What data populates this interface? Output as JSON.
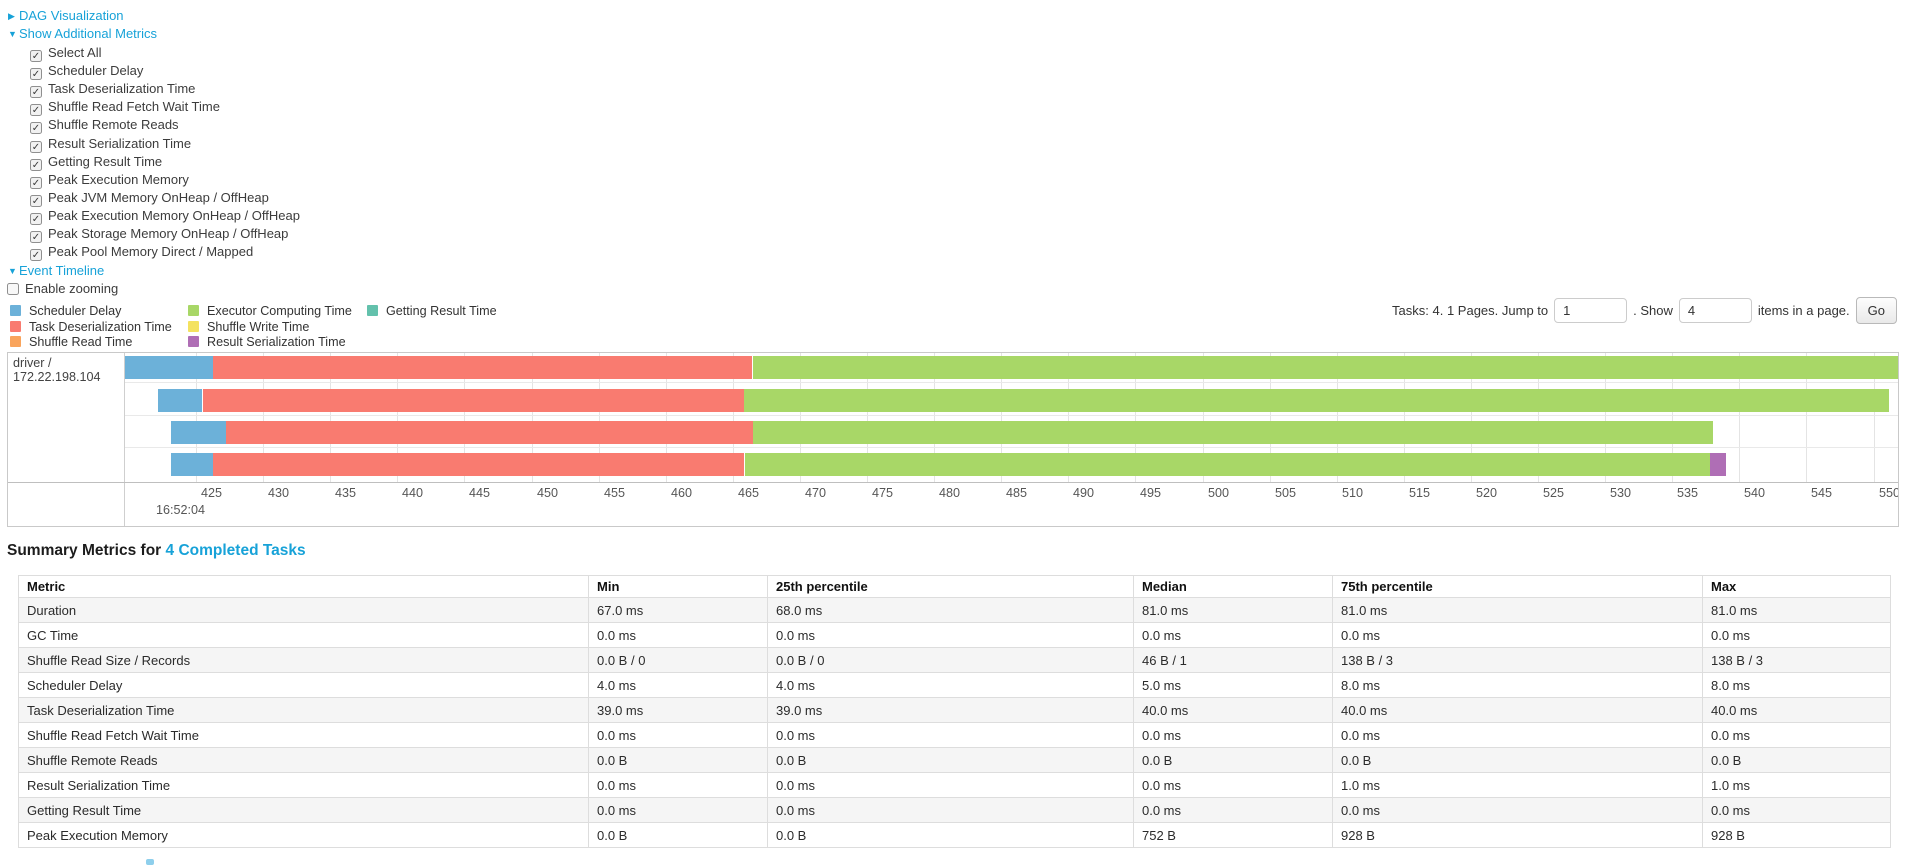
{
  "controls": {
    "dag": {
      "label": "DAG Visualization",
      "state": "collapsed"
    },
    "metrics_toggle": {
      "label": "Show Additional Metrics",
      "state": "expanded"
    },
    "metric_checkboxes": [
      "Select All",
      "Scheduler Delay",
      "Task Deserialization Time",
      "Shuffle Read Fetch Wait Time",
      "Shuffle Remote Reads",
      "Result Serialization Time",
      "Getting Result Time",
      "Peak Execution Memory",
      "Peak JVM Memory OnHeap / OffHeap",
      "Peak Execution Memory OnHeap / OffHeap",
      "Peak Storage Memory OnHeap / OffHeap",
      "Peak Pool Memory Direct / Mapped"
    ],
    "event_timeline": {
      "label": "Event Timeline",
      "state": "expanded"
    },
    "enable_zooming": {
      "label": "Enable zooming",
      "checked": false
    }
  },
  "pagination": {
    "prefix": "Tasks: 4. 1 Pages. Jump to",
    "jump_value": "1",
    "middle": ". Show",
    "show_value": "4",
    "suffix": "items in a page.",
    "go_label": "Go"
  },
  "colors": {
    "scheduler-delay": "#6CB1D9",
    "task-deserialization-time": "#F97B70",
    "shuffle-read-time": "#F9A45C",
    "executor-computing-time": "#A8D767",
    "shuffle-write-time": "#F4E25F",
    "result-serialization-time": "#AF6EB5",
    "getting-result-time": "#63C1AC"
  },
  "legend": {
    "columns": [
      [
        {
          "label": "Scheduler Delay",
          "metric": "scheduler-delay"
        },
        {
          "label": "Task Deserialization Time",
          "metric": "task-deserialization-time"
        },
        {
          "label": "Shuffle Read Time",
          "metric": "shuffle-read-time"
        }
      ],
      [
        {
          "label": "Executor Computing Time",
          "metric": "executor-computing-time"
        },
        {
          "label": "Shuffle Write Time",
          "metric": "shuffle-write-time"
        },
        {
          "label": "Result Serialization Time",
          "metric": "result-serialization-time"
        }
      ],
      [
        {
          "label": "Getting Result Time",
          "metric": "getting-result-time"
        }
      ]
    ]
  },
  "chart_data": {
    "type": "timeline",
    "title": "Event Timeline",
    "row_label": "driver / 172.22.198.104",
    "x_axis": {
      "major_label": "16:52:04",
      "unit": "milliseconds within second",
      "ticks": [
        425,
        430,
        435,
        440,
        445,
        450,
        455,
        460,
        465,
        470,
        475,
        480,
        485,
        490,
        495,
        500,
        505,
        510,
        515,
        520,
        525,
        530,
        535,
        540,
        545,
        550
      ],
      "visible_window_ms": [
        419.7,
        552.3
      ]
    },
    "tasks": [
      {
        "name": "task-0",
        "start_ms": 419.3,
        "segments": [
          {
            "metric": "scheduler-delay",
            "end_ms": 426.3
          },
          {
            "metric": "task-deserialization-time",
            "end_ms": 466.5
          },
          {
            "metric": "executor-computing-time",
            "end_ms": 553.5
          }
        ]
      },
      {
        "name": "task-1",
        "start_ms": 422.2,
        "segments": [
          {
            "metric": "scheduler-delay",
            "end_ms": 425.5
          },
          {
            "metric": "task-deserialization-time",
            "end_ms": 465.8
          },
          {
            "metric": "executor-computing-time",
            "end_ms": 551.1
          }
        ]
      },
      {
        "name": "task-2",
        "start_ms": 423.1,
        "segments": [
          {
            "metric": "scheduler-delay",
            "end_ms": 427.2
          },
          {
            "metric": "task-deserialization-time",
            "end_ms": 466.5
          },
          {
            "metric": "executor-computing-time",
            "end_ms": 538.0
          }
        ]
      },
      {
        "name": "task-3",
        "start_ms": 423.1,
        "segments": [
          {
            "metric": "scheduler-delay",
            "end_ms": 426.3
          },
          {
            "metric": "task-deserialization-time",
            "end_ms": 465.9
          },
          {
            "metric": "executor-computing-time",
            "end_ms": 537.8
          },
          {
            "metric": "result-serialization-time",
            "end_ms": 539.0
          }
        ]
      }
    ]
  },
  "summary": {
    "title_prefix": "Summary Metrics for",
    "title_link": "4 Completed Tasks",
    "table": {
      "headers": [
        "Metric",
        "Min",
        "25th percentile",
        "Median",
        "75th percentile",
        "Max"
      ],
      "rows": [
        [
          "Duration",
          "67.0 ms",
          "68.0 ms",
          "81.0 ms",
          "81.0 ms",
          "81.0 ms"
        ],
        [
          "GC Time",
          "0.0 ms",
          "0.0 ms",
          "0.0 ms",
          "0.0 ms",
          "0.0 ms"
        ],
        [
          "Shuffle Read Size / Records",
          "0.0 B / 0",
          "0.0 B / 0",
          "46 B / 1",
          "138 B / 3",
          "138 B / 3"
        ],
        [
          "Scheduler Delay",
          "4.0 ms",
          "4.0 ms",
          "5.0 ms",
          "8.0 ms",
          "8.0 ms"
        ],
        [
          "Task Deserialization Time",
          "39.0 ms",
          "39.0 ms",
          "40.0 ms",
          "40.0 ms",
          "40.0 ms"
        ],
        [
          "Shuffle Read Fetch Wait Time",
          "0.0 ms",
          "0.0 ms",
          "0.0 ms",
          "0.0 ms",
          "0.0 ms"
        ],
        [
          "Shuffle Remote Reads",
          "0.0 B",
          "0.0 B",
          "0.0 B",
          "0.0 B",
          "0.0 B"
        ],
        [
          "Result Serialization Time",
          "0.0 ms",
          "0.0 ms",
          "0.0 ms",
          "1.0 ms",
          "1.0 ms"
        ],
        [
          "Getting Result Time",
          "0.0 ms",
          "0.0 ms",
          "0.0 ms",
          "0.0 ms",
          "0.0 ms"
        ],
        [
          "Peak Execution Memory",
          "0.0 B",
          "0.0 B",
          "752 B",
          "928 B",
          "928 B"
        ]
      ]
    }
  }
}
